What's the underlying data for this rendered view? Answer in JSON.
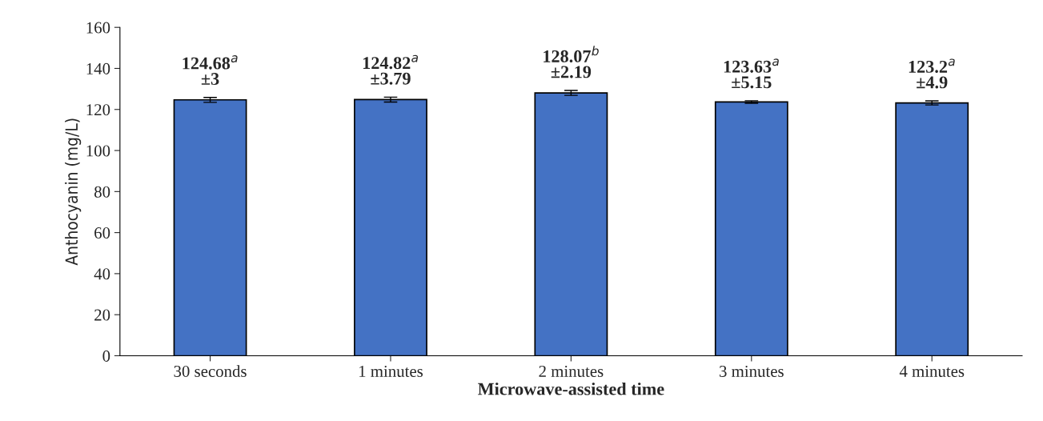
{
  "chart_data": {
    "type": "bar",
    "xlabel": "Microwave-assisted time",
    "ylabel": "Anthocyanin (mg/L)",
    "categories": [
      "30 seconds",
      "1 minutes",
      "2 minutes",
      "3 minutes",
      "4 minutes"
    ],
    "values": [
      124.68,
      124.82,
      128.07,
      123.63,
      123.2
    ],
    "errors": [
      1.2,
      1.2,
      1.2,
      0.6,
      1.0
    ],
    "value_labels": [
      "124.68$^{a}$\n±3",
      "124.82$^{a}$\n±3.79",
      "128.07$^{b}$\n±2.19",
      "123.63$^{a}$\n±5.15",
      "123.2$^{a}$\n±4.9"
    ],
    "color": "#4472c4",
    "ylim": [
      0,
      160
    ],
    "yticks": [
      0,
      20,
      40,
      60,
      80,
      100,
      120,
      140,
      160
    ],
    "grid": false,
    "legend": false
  }
}
